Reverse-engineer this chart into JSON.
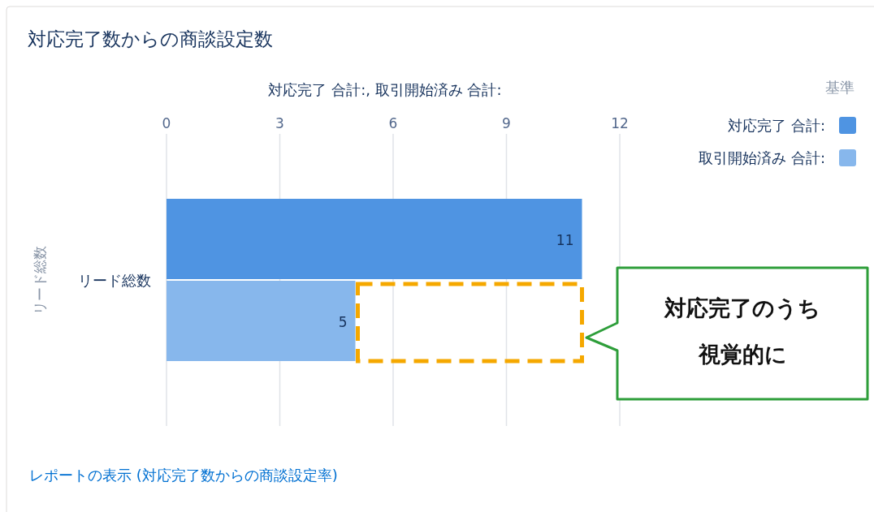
{
  "chart_data": {
    "type": "bar",
    "orientation": "horizontal",
    "title": "対応完了数からの商談設定数",
    "xlabel": "対応完了 合計:, 取引開始済み 合計:",
    "ylabel": "リード総数",
    "legend_title": "基準",
    "categories": [
      "リード総数"
    ],
    "series": [
      {
        "name": "対応完了 合計:",
        "color": "#4f94e2",
        "values": [
          11
        ]
      },
      {
        "name": "取引開始済み 合計:",
        "color": "#87b7ec",
        "values": [
          5
        ]
      }
    ],
    "xlim": [
      0,
      12
    ],
    "xticks": [
      0,
      3,
      6,
      9,
      12
    ],
    "grid": "x",
    "legend": "top right",
    "data_labels": true,
    "annotations": [
      "対応完了のうち",
      "視覚的に",
      "レポートの表示 (対応完了数からの商談設定率)"
    ]
  }
}
